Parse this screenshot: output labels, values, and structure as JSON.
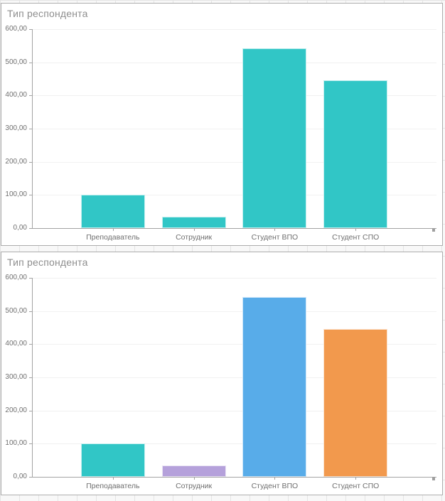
{
  "page": {
    "background_grid_color": "#e4e4e4",
    "panel_border_color": "#adadad",
    "axis_color": "#a3a3a3",
    "gridline_color": "#f1f1f1",
    "title_color": "#8e8e8e",
    "label_color": "#6f6f6f"
  },
  "chart_data": [
    {
      "type": "bar",
      "title": "Тип респондента",
      "categories": [
        "Преподаватель",
        "Сотрудник",
        "Студент ВПО",
        "Студент СПО"
      ],
      "values": [
        100,
        35,
        543,
        446
      ],
      "bar_colors": [
        "#31c6c6",
        "#31c6c6",
        "#31c6c6",
        "#31c6c6"
      ],
      "xlabel": "",
      "ylabel": "",
      "ylim": [
        0,
        600
      ],
      "grid": true,
      "legend": "none",
      "y_ticks": [
        {
          "label": "600,00",
          "value": 600
        },
        {
          "label": "500,00",
          "value": 500
        },
        {
          "label": "400,00",
          "value": 400
        },
        {
          "label": "300,00",
          "value": 300
        },
        {
          "label": "200,00",
          "value": 200
        },
        {
          "label": "100,00",
          "value": 100
        },
        {
          "label": "0,00",
          "value": 0
        }
      ]
    },
    {
      "type": "bar",
      "title": "Тип респондента",
      "categories": [
        "Преподаватель",
        "Сотрудник",
        "Студент ВПО",
        "Студент СПО"
      ],
      "values": [
        100,
        35,
        543,
        446
      ],
      "bar_colors": [
        "#31c6c6",
        "#b5a1db",
        "#58ace9",
        "#f2994d"
      ],
      "xlabel": "",
      "ylabel": "",
      "ylim": [
        0,
        600
      ],
      "grid": true,
      "legend": "none",
      "y_ticks": [
        {
          "label": "600,00",
          "value": 600
        },
        {
          "label": "500,00",
          "value": 500
        },
        {
          "label": "400,00",
          "value": 400
        },
        {
          "label": "300,00",
          "value": 300
        },
        {
          "label": "200,00",
          "value": 200
        },
        {
          "label": "100,00",
          "value": 100
        },
        {
          "label": "0,00",
          "value": 0
        }
      ]
    }
  ]
}
